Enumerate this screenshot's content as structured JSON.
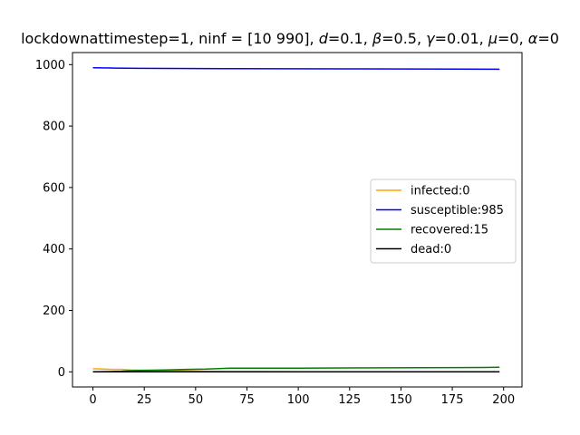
{
  "chart_data": {
    "type": "line",
    "title": "lockdownattimestep=1, ninf = [10 990], d=0.1, β=0.5, γ=0.01, μ=0, α=0",
    "title_parts": [
      {
        "text": "lockdownattimestep=1, ninf = [10 990], ",
        "italic": false
      },
      {
        "text": "d",
        "italic": true
      },
      {
        "text": "=0.1, ",
        "italic": false
      },
      {
        "text": "β",
        "italic": true
      },
      {
        "text": "=0.5, ",
        "italic": false
      },
      {
        "text": "γ",
        "italic": true
      },
      {
        "text": "=0.01, ",
        "italic": false
      },
      {
        "text": "μ",
        "italic": true
      },
      {
        "text": "=0, ",
        "italic": false
      },
      {
        "text": "α",
        "italic": true
      },
      {
        "text": "=0",
        "italic": false
      }
    ],
    "xlabel": "",
    "ylabel": "",
    "xlim": [
      -9.95,
      208.95
    ],
    "ylim": [
      -49.25,
      1039.25
    ],
    "x_ticks": [
      0,
      25,
      50,
      75,
      100,
      125,
      150,
      175,
      200
    ],
    "y_ticks": [
      0,
      200,
      400,
      600,
      800,
      1000
    ],
    "grid": false,
    "legend_position": "center-right",
    "series": [
      {
        "name": "infected:0",
        "color": "#ffa500",
        "points": [
          [
            0,
            10
          ],
          [
            5,
            9
          ],
          [
            10,
            8
          ],
          [
            14,
            8
          ],
          [
            18,
            6
          ],
          [
            25,
            5
          ],
          [
            35,
            4
          ],
          [
            45,
            3
          ],
          [
            55,
            2
          ],
          [
            65,
            1
          ],
          [
            80,
            1
          ],
          [
            100,
            0
          ],
          [
            198,
            0
          ]
        ]
      },
      {
        "name": "susceptible:985",
        "color": "#0000ff",
        "points": [
          [
            0,
            990
          ],
          [
            8,
            989
          ],
          [
            22,
            988
          ],
          [
            64,
            987
          ],
          [
            129,
            986
          ],
          [
            198,
            985
          ]
        ]
      },
      {
        "name": "recovered:15",
        "color": "#008000",
        "points": [
          [
            0,
            0
          ],
          [
            8,
            1
          ],
          [
            14,
            2
          ],
          [
            18,
            4
          ],
          [
            25,
            5
          ],
          [
            35,
            6
          ],
          [
            45,
            8
          ],
          [
            55,
            9
          ],
          [
            67,
            12
          ],
          [
            100,
            12
          ],
          [
            140,
            13
          ],
          [
            190,
            14
          ],
          [
            198,
            15
          ]
        ]
      },
      {
        "name": "dead:0",
        "color": "#000000",
        "points": [
          [
            0,
            0
          ],
          [
            198,
            0
          ]
        ]
      }
    ]
  }
}
